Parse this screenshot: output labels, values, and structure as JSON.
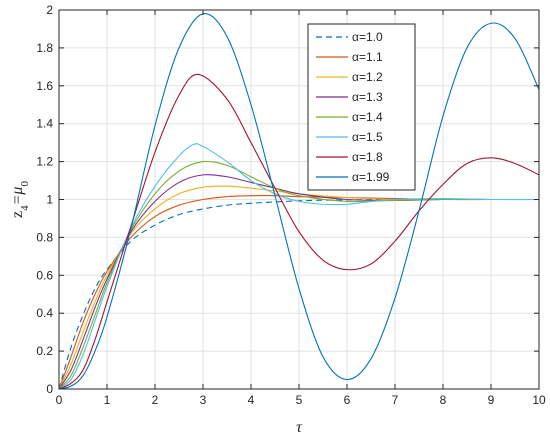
{
  "chart_data": {
    "type": "line",
    "title": "",
    "xlabel": "τ",
    "ylabel": {
      "base": "z",
      "sub1": "4",
      "eq": "=μ",
      "sub2": "0"
    },
    "xlim": [
      0,
      10
    ],
    "ylim": [
      0,
      2
    ],
    "xticks": [
      0,
      1,
      2,
      3,
      4,
      5,
      6,
      7,
      8,
      9,
      10
    ],
    "yticks": [
      0,
      0.2,
      0.4,
      0.6,
      0.8,
      1,
      1.2,
      1.4,
      1.6,
      1.8,
      2
    ],
    "xtick_labels": [
      "0",
      "1",
      "2",
      "3",
      "4",
      "5",
      "6",
      "7",
      "8",
      "9",
      "10"
    ],
    "ytick_labels": [
      "0",
      "0.2",
      "0.4",
      "0.6",
      "0.8",
      "1",
      "1.2",
      "1.4",
      "1.6",
      "1.8",
      "2"
    ],
    "grid": true,
    "legend_position": "top-right",
    "series": [
      {
        "name": "α=1.0",
        "color": "#0072BD",
        "dash": true,
        "x": [
          0,
          0.25,
          0.5,
          0.75,
          1,
          1.5,
          2,
          2.5,
          3,
          3.5,
          4,
          5,
          6,
          7,
          8,
          9,
          10
        ],
        "y": [
          0,
          0.22,
          0.39,
          0.53,
          0.63,
          0.78,
          0.865,
          0.92,
          0.95,
          0.97,
          0.98,
          0.993,
          0.998,
          0.999,
          1.0,
          1.0,
          1.0
        ]
      },
      {
        "name": "α=1.1",
        "color": "#D95319",
        "dash": false,
        "x": [
          0,
          0.25,
          0.5,
          0.75,
          1,
          1.5,
          2,
          2.5,
          3,
          3.5,
          4,
          4.5,
          5,
          6,
          7,
          8,
          9,
          10
        ],
        "y": [
          0,
          0.17,
          0.35,
          0.5,
          0.62,
          0.8,
          0.91,
          0.97,
          1.0,
          1.015,
          1.02,
          1.02,
          1.015,
          1.01,
          1.005,
          1.0,
          1.0,
          1.0
        ]
      },
      {
        "name": "α=1.2",
        "color": "#EDB120",
        "dash": false,
        "x": [
          0,
          0.25,
          0.5,
          0.75,
          1,
          1.5,
          2,
          2.5,
          3,
          3.5,
          4,
          4.5,
          5,
          6,
          7,
          8,
          9,
          10
        ],
        "y": [
          0,
          0.13,
          0.3,
          0.46,
          0.6,
          0.82,
          0.95,
          1.03,
          1.065,
          1.07,
          1.06,
          1.045,
          1.03,
          1.01,
          1.0,
          1.0,
          1.0,
          1.0
        ]
      },
      {
        "name": "α=1.3",
        "color": "#7E2F8E",
        "dash": false,
        "x": [
          0,
          0.25,
          0.5,
          0.75,
          1,
          1.5,
          2,
          2.5,
          3,
          3.5,
          4,
          4.5,
          5,
          6,
          7,
          8,
          9,
          10
        ],
        "y": [
          0,
          0.1,
          0.26,
          0.43,
          0.58,
          0.83,
          0.99,
          1.09,
          1.13,
          1.12,
          1.09,
          1.06,
          1.03,
          1.0,
          0.995,
          1.0,
          1.0,
          1.0
        ]
      },
      {
        "name": "α=1.4",
        "color": "#77AC30",
        "dash": false,
        "x": [
          0,
          0.25,
          0.5,
          0.75,
          1,
          1.5,
          2,
          2.5,
          3,
          3.5,
          4,
          4.5,
          5,
          6,
          7,
          8,
          9,
          10
        ],
        "y": [
          0,
          0.07,
          0.22,
          0.39,
          0.56,
          0.84,
          1.03,
          1.15,
          1.2,
          1.18,
          1.12,
          1.06,
          1.02,
          0.99,
          0.995,
          1.0,
          1.0,
          1.0
        ]
      },
      {
        "name": "α=1.5",
        "color": "#4DBEEE",
        "dash": false,
        "x": [
          0,
          0.25,
          0.5,
          0.75,
          1,
          1.5,
          2,
          2.5,
          2.8,
          3,
          3.5,
          4,
          4.5,
          5,
          5.5,
          6,
          6.5,
          7,
          8,
          9,
          10
        ],
        "y": [
          0,
          0.05,
          0.18,
          0.36,
          0.54,
          0.85,
          1.07,
          1.23,
          1.29,
          1.28,
          1.2,
          1.1,
          1.03,
          0.99,
          0.975,
          0.975,
          0.99,
          1.0,
          1.005,
          1.0,
          1.0
        ]
      },
      {
        "name": "α=1.8",
        "color": "#A2142F",
        "dash": false,
        "x": [
          0,
          0.25,
          0.5,
          0.75,
          1,
          1.5,
          2,
          2.5,
          2.9,
          3.5,
          4,
          4.5,
          5,
          5.5,
          6,
          6.5,
          7,
          7.5,
          8,
          8.5,
          9,
          9.5,
          10
        ],
        "y": [
          0,
          0.03,
          0.1,
          0.26,
          0.46,
          0.86,
          1.25,
          1.55,
          1.66,
          1.53,
          1.3,
          1.06,
          0.83,
          0.68,
          0.63,
          0.66,
          0.78,
          0.94,
          1.08,
          1.19,
          1.22,
          1.19,
          1.13
        ]
      },
      {
        "name": "α=1.99",
        "color": "#0072BD",
        "dash": false,
        "x": [
          0,
          0.25,
          0.5,
          0.75,
          1,
          1.5,
          2,
          2.5,
          3,
          3.5,
          4,
          4.5,
          5,
          5.5,
          6,
          6.5,
          7,
          7.5,
          8,
          8.5,
          9,
          9.5,
          10
        ],
        "y": [
          0,
          0.015,
          0.07,
          0.2,
          0.38,
          0.85,
          1.39,
          1.8,
          1.98,
          1.86,
          1.5,
          1.02,
          0.53,
          0.17,
          0.05,
          0.16,
          0.48,
          0.94,
          1.44,
          1.8,
          1.93,
          1.85,
          1.58
        ]
      }
    ]
  }
}
